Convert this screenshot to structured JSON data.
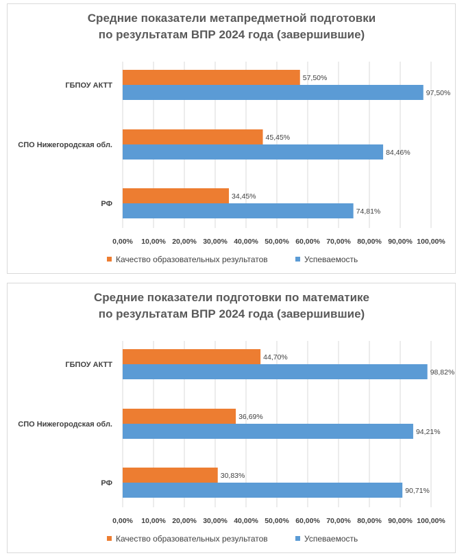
{
  "chart_data": [
    {
      "type": "bar",
      "orientation": "horizontal",
      "title_lines": [
        "Средние показатели метапредметной подготовки",
        "по результатам ВПР 2024 года (завершившие)"
      ],
      "categories": [
        "ГБПОУ АКТТ",
        "СПО Нижегородская обл.",
        "РФ"
      ],
      "series": [
        {
          "name": "Качество образовательных результатов",
          "color": "#ED7D31",
          "values": [
            57.5,
            45.45,
            34.45
          ],
          "labels": [
            "57,50%",
            "45,45%",
            "34,45%"
          ]
        },
        {
          "name": "Успеваемость",
          "color": "#5B9BD5",
          "values": [
            97.5,
            84.46,
            74.81
          ],
          "labels": [
            "97,50%",
            "84,46%",
            "74,81%"
          ]
        }
      ],
      "xlim": [
        0,
        100
      ],
      "ticks": [
        "0,00%",
        "10,00%",
        "20,00%",
        "30,00%",
        "40,00%",
        "50,00%",
        "60,00%",
        "70,00%",
        "80,00%",
        "90,00%",
        "100,00%"
      ],
      "grid": true,
      "legend": "bottom"
    },
    {
      "type": "bar",
      "orientation": "horizontal",
      "title_lines": [
        "Средние показатели подготовки по математике",
        "по результатам ВПР 2024 года (завершившие)"
      ],
      "categories": [
        "ГБПОУ АКТТ",
        "СПО Нижегородская обл.",
        "РФ"
      ],
      "series": [
        {
          "name": "Качество образовательных результатов",
          "color": "#ED7D31",
          "values": [
            44.7,
            36.69,
            30.83
          ],
          "labels": [
            "44,70%",
            "36,69%",
            "30,83%"
          ]
        },
        {
          "name": "Успеваемость",
          "color": "#5B9BD5",
          "values": [
            98.82,
            94.21,
            90.71
          ],
          "labels": [
            "98,82%",
            "94,21%",
            "90,71%"
          ]
        }
      ],
      "xlim": [
        0,
        100
      ],
      "ticks": [
        "0,00%",
        "10,00%",
        "20,00%",
        "30,00%",
        "40,00%",
        "50,00%",
        "60,00%",
        "70,00%",
        "80,00%",
        "90,00%",
        "100,00%"
      ],
      "grid": true,
      "legend": "bottom"
    }
  ]
}
